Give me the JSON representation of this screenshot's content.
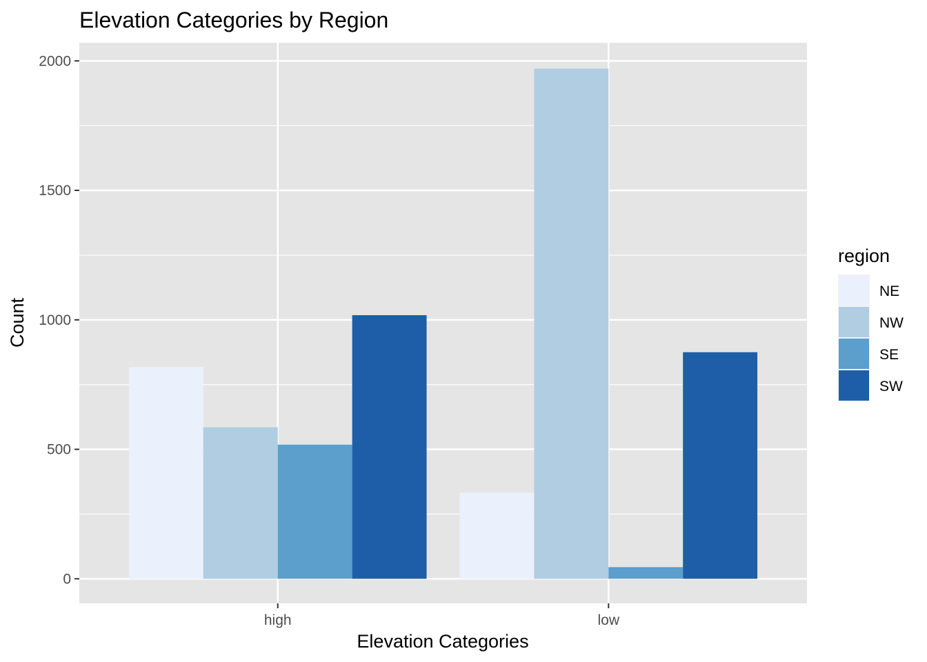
{
  "chart_data": {
    "type": "bar",
    "title": "Elevation Categories by Region",
    "xlabel": "Elevation Categories",
    "ylabel": "Count",
    "categories": [
      "high",
      "low"
    ],
    "series": [
      {
        "name": "NE",
        "color": "#EAF0FC",
        "values": [
          818,
          333
        ]
      },
      {
        "name": "NW",
        "color": "#B0CDE2",
        "values": [
          585,
          1970
        ]
      },
      {
        "name": "SE",
        "color": "#5C9ECC",
        "values": [
          518,
          45
        ]
      },
      {
        "name": "SW",
        "color": "#1E5EA8",
        "values": [
          1018,
          875
        ]
      }
    ],
    "yticks": [
      0,
      500,
      1000,
      1500,
      2000
    ],
    "ylim": [
      -95,
      2070
    ],
    "legend_title": "region",
    "legend_position": "right",
    "grid": true,
    "panel_background": "#E5E5E5"
  }
}
